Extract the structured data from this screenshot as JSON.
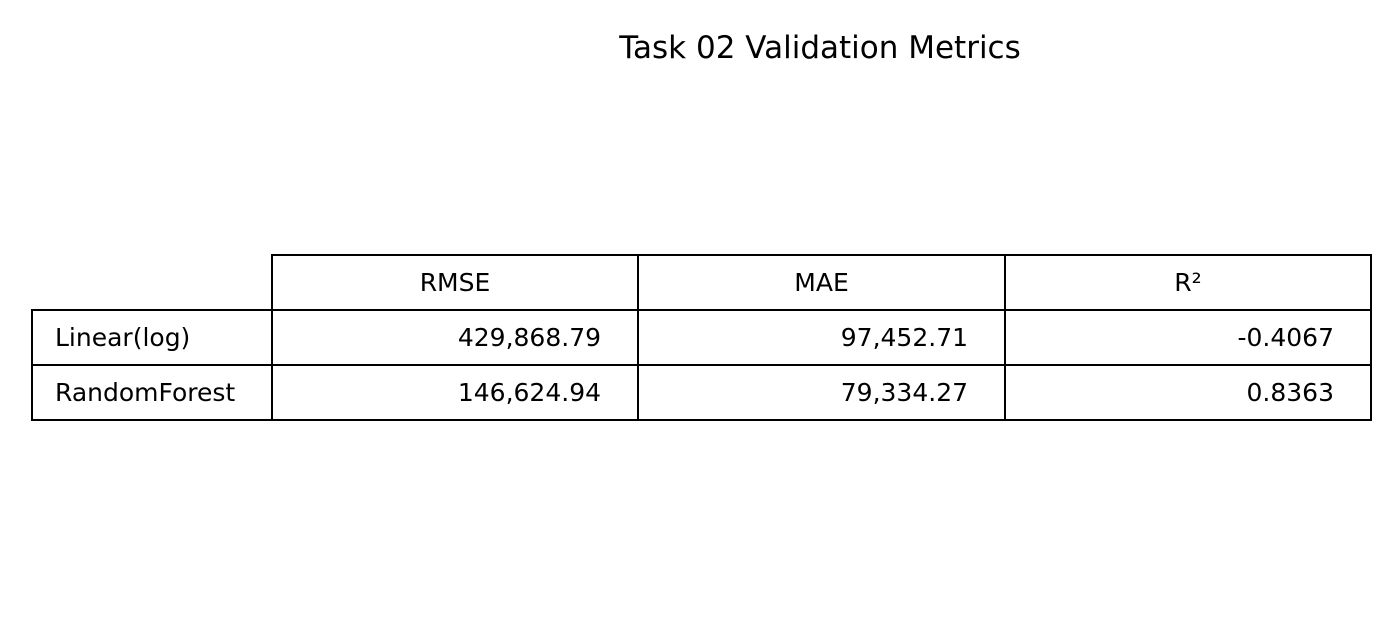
{
  "chart_data": {
    "type": "table",
    "title": "Task 02 Validation Metrics",
    "columns": [
      "RMSE",
      "MAE",
      "R²"
    ],
    "rows": [
      {
        "label": "Linear(log)",
        "cells": [
          "429,868.79",
          "97,452.71",
          "-0.4067"
        ]
      },
      {
        "label": "RandomForest",
        "cells": [
          "146,624.94",
          "79,334.27",
          "0.8363"
        ]
      }
    ],
    "values": [
      [
        429868.79,
        97452.71,
        -0.4067
      ],
      [
        146624.94,
        79334.27,
        0.8363
      ]
    ]
  }
}
